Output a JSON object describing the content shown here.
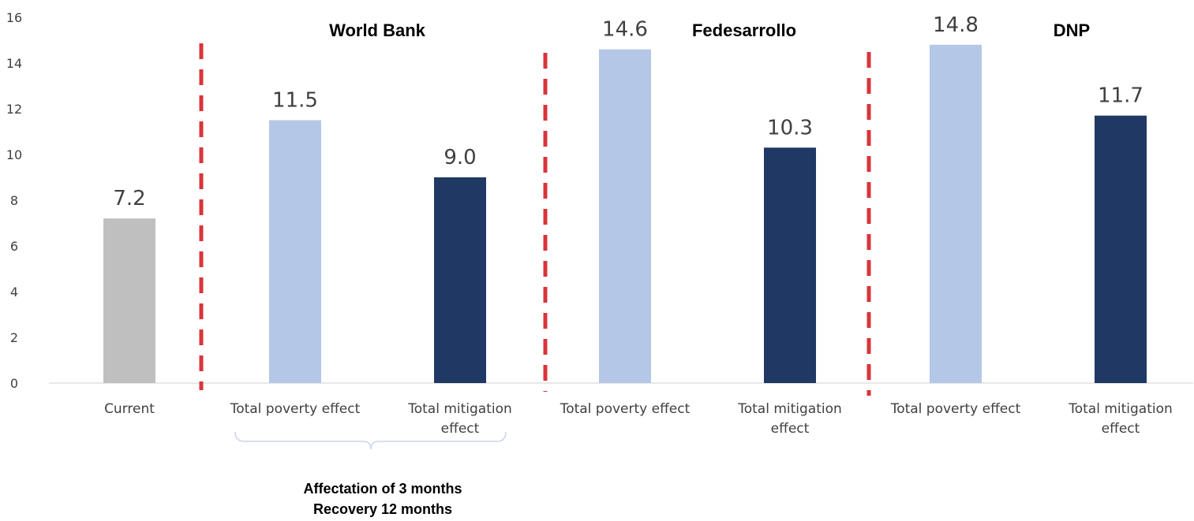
{
  "chart_data": {
    "type": "bar",
    "categories": [
      "Current",
      "Total poverty effect",
      "Total mitigation effect",
      "Total poverty effect",
      "Total mitigation effect",
      "Total poverty effect",
      "Total mitigation effect"
    ],
    "category_label_lines": [
      [
        "Current"
      ],
      [
        "Total poverty effect"
      ],
      [
        "Total mitigation",
        "effect"
      ],
      [
        "Total poverty effect"
      ],
      [
        "Total mitigation",
        "effect"
      ],
      [
        "Total poverty effect"
      ],
      [
        "Total mitigation",
        "effect"
      ]
    ],
    "values": [
      7.2,
      11.5,
      9.0,
      14.6,
      10.3,
      14.8,
      11.7
    ],
    "value_labels": [
      "7.2",
      "11.5",
      "9.0",
      "14.6",
      "10.3",
      "14.8",
      "11.7"
    ],
    "bar_colors": [
      "#bfbfbf",
      "#b4c7e7",
      "#203864",
      "#b4c7e7",
      "#203864",
      "#b4c7e7",
      "#203864"
    ],
    "ylim": [
      0,
      16
    ],
    "yticks": [
      0,
      2,
      4,
      6,
      8,
      10,
      12,
      14,
      16
    ],
    "grid": false,
    "legend": "none",
    "group_titles": [
      "World Bank",
      "Fedesarrollo",
      "DNP"
    ],
    "divider_color": "#d9343a",
    "title": "",
    "xlabel": "",
    "ylabel": ""
  },
  "annotation": {
    "lines": [
      "Affectation of 3 months",
      "Recovery 12 months"
    ],
    "brace_color": "#c9d6ea"
  }
}
